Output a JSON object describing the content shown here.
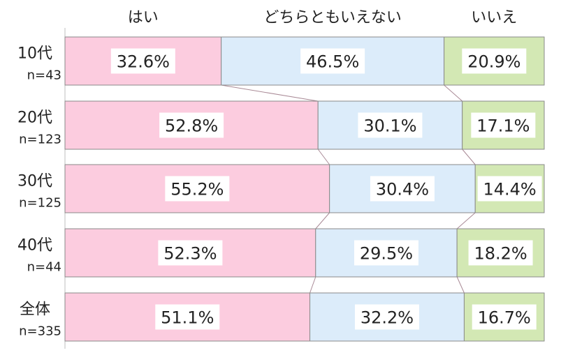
{
  "chart_data": {
    "type": "bar",
    "orientation": "horizontal",
    "stacked": "100%",
    "legend": [
      "はい",
      "どちらともいえない",
      "いいえ"
    ],
    "rows": [
      {
        "label": "10代",
        "n": "n=43"
      },
      {
        "label": "20代",
        "n": "n=123"
      },
      {
        "label": "30代",
        "n": "n=125"
      },
      {
        "label": "40代",
        "n": "n=44"
      },
      {
        "label": "全体",
        "n": "n=335"
      }
    ],
    "series": [
      {
        "name": "はい",
        "color": "#fcccdf",
        "values": [
          32.6,
          52.8,
          55.2,
          52.3,
          51.1
        ],
        "labels": [
          "32.6%",
          "52.8%",
          "55.2%",
          "52.3%",
          "51.1%"
        ]
      },
      {
        "name": "どちらともいえない",
        "color": "#dcecfa",
        "values": [
          46.5,
          30.1,
          30.4,
          29.5,
          32.2
        ],
        "labels": [
          "46.5%",
          "30.1%",
          "30.4%",
          "29.5%",
          "32.2%"
        ]
      },
      {
        "name": "いいえ",
        "color": "#d3e8b4",
        "values": [
          20.9,
          17.1,
          14.4,
          18.2,
          16.7
        ],
        "labels": [
          "20.9%",
          "17.1%",
          "14.4%",
          "18.2%",
          "16.7%"
        ]
      }
    ],
    "xlim": [
      0,
      100
    ],
    "series_lines": true,
    "grid": false
  }
}
